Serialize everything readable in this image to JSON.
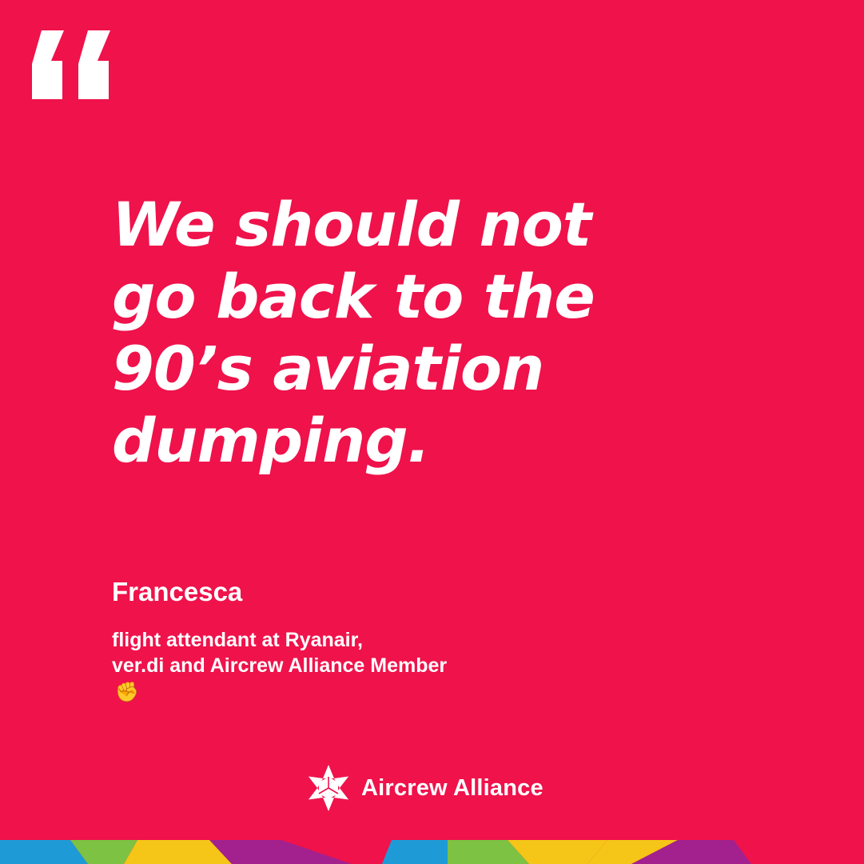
{
  "quote": {
    "lines": [
      "We should not",
      "go back to the",
      "90’s aviation",
      "dumping."
    ]
  },
  "author": {
    "name": "Francesca",
    "role_lines": [
      "flight attendant at Ryanair,",
      "ver.di and Aircrew Alliance Member"
    ],
    "emoji": "✊"
  },
  "logo": {
    "text": "Aircrew Alliance",
    "icon": "star-logo-icon"
  },
  "colors": {
    "background": "#EF124B",
    "text": "#FFFFFF",
    "stripe": [
      "#1E9BD7",
      "#7DC243",
      "#F5C518",
      "#A3218E"
    ]
  }
}
